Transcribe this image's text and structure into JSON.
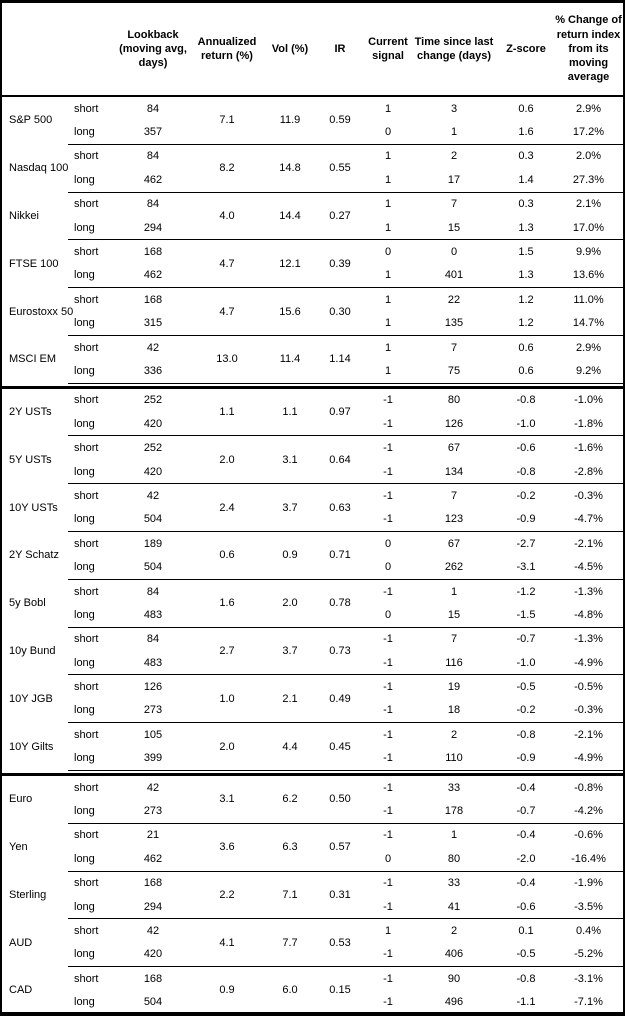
{
  "table": {
    "headers": {
      "asset": "",
      "leg": "",
      "lookback": "Lookback (moving avg, days)",
      "annualized_return": "Annualized return (%)",
      "vol": "Vol (%)",
      "ir": "IR",
      "current_signal": "Current signal",
      "time_since_change": "Time since last change (days)",
      "z_score": "Z-score",
      "pct_change": "% Change of return index from its moving average"
    },
    "sections": [
      {
        "groups": [
          {
            "asset": "S&P 500",
            "annualized_return": "7.1",
            "vol": "11.9",
            "ir": "0.59",
            "rows": [
              {
                "leg": "short",
                "lookback": "84",
                "signal": "1",
                "time": "3",
                "z": "0.6",
                "pct": "2.9%"
              },
              {
                "leg": "long",
                "lookback": "357",
                "signal": "0",
                "time": "1",
                "z": "1.6",
                "pct": "17.2%"
              }
            ]
          },
          {
            "asset": "Nasdaq 100",
            "annualized_return": "8.2",
            "vol": "14.8",
            "ir": "0.55",
            "rows": [
              {
                "leg": "short",
                "lookback": "84",
                "signal": "1",
                "time": "2",
                "z": "0.3",
                "pct": "2.0%"
              },
              {
                "leg": "long",
                "lookback": "462",
                "signal": "1",
                "time": "17",
                "z": "1.4",
                "pct": "27.3%"
              }
            ]
          },
          {
            "asset": "Nikkei",
            "annualized_return": "4.0",
            "vol": "14.4",
            "ir": "0.27",
            "rows": [
              {
                "leg": "short",
                "lookback": "84",
                "signal": "1",
                "time": "7",
                "z": "0.3",
                "pct": "2.1%"
              },
              {
                "leg": "long",
                "lookback": "294",
                "signal": "1",
                "time": "15",
                "z": "1.3",
                "pct": "17.0%"
              }
            ]
          },
          {
            "asset": "FTSE 100",
            "annualized_return": "4.7",
            "vol": "12.1",
            "ir": "0.39",
            "rows": [
              {
                "leg": "short",
                "lookback": "168",
                "signal": "0",
                "time": "0",
                "z": "1.5",
                "pct": "9.9%"
              },
              {
                "leg": "long",
                "lookback": "462",
                "signal": "1",
                "time": "401",
                "z": "1.3",
                "pct": "13.6%"
              }
            ]
          },
          {
            "asset": "Eurostoxx 50",
            "annualized_return": "4.7",
            "vol": "15.6",
            "ir": "0.30",
            "rows": [
              {
                "leg": "short",
                "lookback": "168",
                "signal": "1",
                "time": "22",
                "z": "1.2",
                "pct": "11.0%"
              },
              {
                "leg": "long",
                "lookback": "315",
                "signal": "1",
                "time": "135",
                "z": "1.2",
                "pct": "14.7%"
              }
            ]
          },
          {
            "asset": "MSCI EM",
            "annualized_return": "13.0",
            "vol": "11.4",
            "ir": "1.14",
            "rows": [
              {
                "leg": "short",
                "lookback": "42",
                "signal": "1",
                "time": "7",
                "z": "0.6",
                "pct": "2.9%"
              },
              {
                "leg": "long",
                "lookback": "336",
                "signal": "1",
                "time": "75",
                "z": "0.6",
                "pct": "9.2%"
              }
            ]
          }
        ]
      },
      {
        "groups": [
          {
            "asset": "2Y USTs",
            "annualized_return": "1.1",
            "vol": "1.1",
            "ir": "0.97",
            "rows": [
              {
                "leg": "short",
                "lookback": "252",
                "signal": "-1",
                "time": "80",
                "z": "-0.8",
                "pct": "-1.0%"
              },
              {
                "leg": "long",
                "lookback": "420",
                "signal": "-1",
                "time": "126",
                "z": "-1.0",
                "pct": "-1.8%"
              }
            ]
          },
          {
            "asset": "5Y USTs",
            "annualized_return": "2.0",
            "vol": "3.1",
            "ir": "0.64",
            "rows": [
              {
                "leg": "short",
                "lookback": "252",
                "signal": "-1",
                "time": "67",
                "z": "-0.6",
                "pct": "-1.6%"
              },
              {
                "leg": "long",
                "lookback": "420",
                "signal": "-1",
                "time": "134",
                "z": "-0.8",
                "pct": "-2.8%"
              }
            ]
          },
          {
            "asset": "10Y USTs",
            "annualized_return": "2.4",
            "vol": "3.7",
            "ir": "0.63",
            "rows": [
              {
                "leg": "short",
                "lookback": "42",
                "signal": "-1",
                "time": "7",
                "z": "-0.2",
                "pct": "-0.3%"
              },
              {
                "leg": "long",
                "lookback": "504",
                "signal": "-1",
                "time": "123",
                "z": "-0.9",
                "pct": "-4.7%"
              }
            ]
          },
          {
            "asset": "2Y Schatz",
            "annualized_return": "0.6",
            "vol": "0.9",
            "ir": "0.71",
            "rows": [
              {
                "leg": "short",
                "lookback": "189",
                "signal": "0",
                "time": "67",
                "z": "-2.7",
                "pct": "-2.1%"
              },
              {
                "leg": "long",
                "lookback": "504",
                "signal": "0",
                "time": "262",
                "z": "-3.1",
                "pct": "-4.5%"
              }
            ]
          },
          {
            "asset": "5y Bobl",
            "annualized_return": "1.6",
            "vol": "2.0",
            "ir": "0.78",
            "rows": [
              {
                "leg": "short",
                "lookback": "84",
                "signal": "-1",
                "time": "1",
                "z": "-1.2",
                "pct": "-1.3%"
              },
              {
                "leg": "long",
                "lookback": "483",
                "signal": "0",
                "time": "15",
                "z": "-1.5",
                "pct": "-4.8%"
              }
            ]
          },
          {
            "asset": "10y Bund",
            "annualized_return": "2.7",
            "vol": "3.7",
            "ir": "0.73",
            "rows": [
              {
                "leg": "short",
                "lookback": "84",
                "signal": "-1",
                "time": "7",
                "z": "-0.7",
                "pct": "-1.3%"
              },
              {
                "leg": "long",
                "lookback": "483",
                "signal": "-1",
                "time": "116",
                "z": "-1.0",
                "pct": "-4.9%"
              }
            ]
          },
          {
            "asset": "10Y JGB",
            "annualized_return": "1.0",
            "vol": "2.1",
            "ir": "0.49",
            "rows": [
              {
                "leg": "short",
                "lookback": "126",
                "signal": "-1",
                "time": "19",
                "z": "-0.5",
                "pct": "-0.5%"
              },
              {
                "leg": "long",
                "lookback": "273",
                "signal": "-1",
                "time": "18",
                "z": "-0.2",
                "pct": "-0.3%"
              }
            ]
          },
          {
            "asset": "10Y Gilts",
            "annualized_return": "2.0",
            "vol": "4.4",
            "ir": "0.45",
            "rows": [
              {
                "leg": "short",
                "lookback": "105",
                "signal": "-1",
                "time": "2",
                "z": "-0.8",
                "pct": "-2.1%"
              },
              {
                "leg": "long",
                "lookback": "399",
                "signal": "-1",
                "time": "110",
                "z": "-0.9",
                "pct": "-4.9%"
              }
            ]
          }
        ]
      },
      {
        "groups": [
          {
            "asset": "Euro",
            "annualized_return": "3.1",
            "vol": "6.2",
            "ir": "0.50",
            "rows": [
              {
                "leg": "short",
                "lookback": "42",
                "signal": "-1",
                "time": "33",
                "z": "-0.4",
                "pct": "-0.8%"
              },
              {
                "leg": "long",
                "lookback": "273",
                "signal": "-1",
                "time": "178",
                "z": "-0.7",
                "pct": "-4.2%"
              }
            ]
          },
          {
            "asset": "Yen",
            "annualized_return": "3.6",
            "vol": "6.3",
            "ir": "0.57",
            "rows": [
              {
                "leg": "short",
                "lookback": "21",
                "signal": "-1",
                "time": "1",
                "z": "-0.4",
                "pct": "-0.6%"
              },
              {
                "leg": "long",
                "lookback": "462",
                "signal": "0",
                "time": "80",
                "z": "-2.0",
                "pct": "-16.4%"
              }
            ]
          },
          {
            "asset": "Sterling",
            "annualized_return": "2.2",
            "vol": "7.1",
            "ir": "0.31",
            "rows": [
              {
                "leg": "short",
                "lookback": "168",
                "signal": "-1",
                "time": "33",
                "z": "-0.4",
                "pct": "-1.9%"
              },
              {
                "leg": "long",
                "lookback": "294",
                "signal": "-1",
                "time": "41",
                "z": "-0.6",
                "pct": "-3.5%"
              }
            ]
          },
          {
            "asset": "AUD",
            "annualized_return": "4.1",
            "vol": "7.7",
            "ir": "0.53",
            "rows": [
              {
                "leg": "short",
                "lookback": "42",
                "signal": "1",
                "time": "2",
                "z": "0.1",
                "pct": "0.4%"
              },
              {
                "leg": "long",
                "lookback": "420",
                "signal": "-1",
                "time": "406",
                "z": "-0.5",
                "pct": "-5.2%"
              }
            ]
          },
          {
            "asset": "CAD",
            "annualized_return": "0.9",
            "vol": "6.0",
            "ir": "0.15",
            "rows": [
              {
                "leg": "short",
                "lookback": "168",
                "signal": "-1",
                "time": "90",
                "z": "-0.8",
                "pct": "-3.1%"
              },
              {
                "leg": "long",
                "lookback": "504",
                "signal": "-1",
                "time": "496",
                "z": "-1.1",
                "pct": "-7.1%"
              }
            ]
          }
        ]
      }
    ]
  }
}
